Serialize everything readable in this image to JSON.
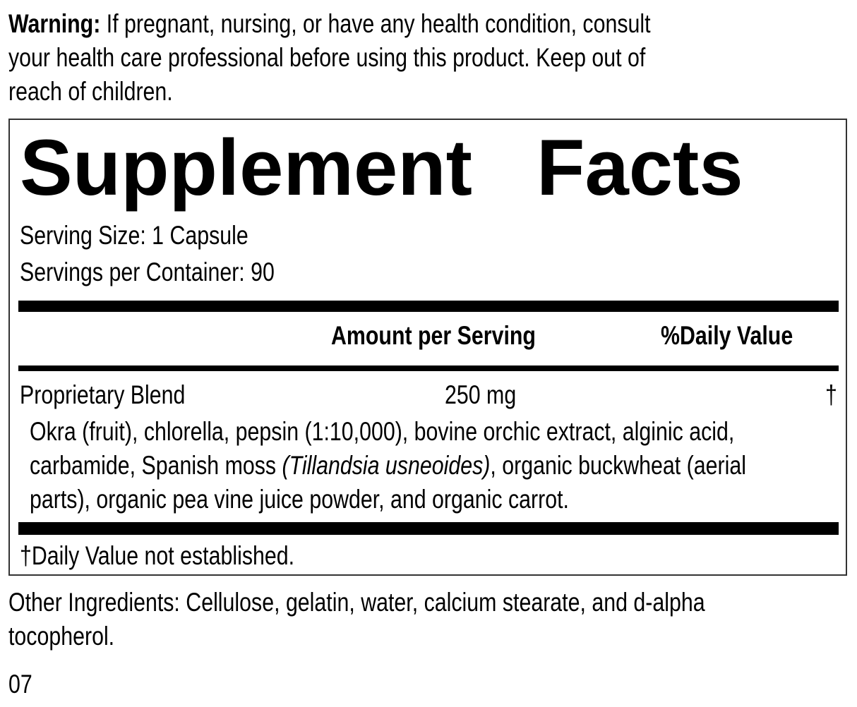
{
  "warning": {
    "label": "Warning:",
    "lines": [
      "If pregnant, nursing, or have any health condition, consult",
      "your health care professional before using this product. Keep out of",
      "reach of children."
    ]
  },
  "facts": {
    "title": "Supplement Facts",
    "serving_size": "Serving Size: 1 Capsule",
    "servings_per_container": "Servings per Container: 90",
    "header": {
      "amount": "Amount per Serving",
      "dv": "%Daily Value"
    },
    "blend": {
      "name": "Proprietary Blend",
      "amount": "250 mg",
      "dv": "†",
      "lines": [
        "Okra (fruit), chlorella, pepsin (1:10,000), bovine orchic extract, alginic acid,",
        "carbamide, Spanish moss ",
        "(Tillandsia usneoides)",
        ", organic buckwheat (aerial",
        "parts), organic pea vine juice powder, and organic carrot."
      ]
    },
    "footnote": "†Daily Value not established."
  },
  "other_ingredients": [
    "Other Ingredients: Cellulose, gelatin, water, calcium stearate, and d-alpha",
    "tocopherol."
  ],
  "code": "07"
}
